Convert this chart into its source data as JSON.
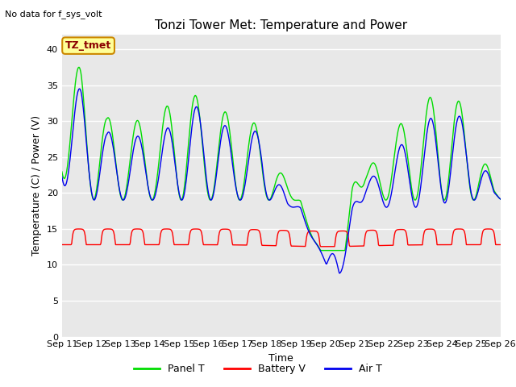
{
  "title": "Tonzi Tower Met: Temperature and Power",
  "subtitle": "No data for f_sys_volt",
  "ylabel": "Temperature (C) / Power (V)",
  "xlabel": "Time",
  "annotation": "TZ_tmet",
  "ylim": [
    0,
    42
  ],
  "yticks": [
    0,
    5,
    10,
    15,
    20,
    25,
    30,
    35,
    40
  ],
  "xtick_labels": [
    "Sep 11",
    "Sep 12",
    "Sep 13",
    "Sep 14",
    "Sep 15",
    "Sep 16",
    "Sep 17",
    "Sep 18",
    "Sep 19",
    "Sep 20",
    "Sep 21",
    "Sep 22",
    "Sep 23",
    "Sep 24",
    "Sep 25",
    "Sep 26"
  ],
  "panel_color": "#00dd00",
  "battery_color": "#ff0000",
  "air_color": "#0000ee",
  "background_color": "#e8e8e8",
  "legend_labels": [
    "Panel T",
    "Battery V",
    "Air T"
  ],
  "title_fontsize": 11,
  "axis_fontsize": 9,
  "tick_fontsize": 8,
  "legend_fontsize": 9,
  "n_days": 15,
  "pts_per_day": 48,
  "panel_peaks": [
    22,
    37.5,
    19,
    30.5,
    19,
    30.0,
    19,
    30.5,
    19,
    35.5,
    19,
    31.0,
    19,
    31.5,
    19,
    29.0,
    19,
    21.0,
    19,
    13.5,
    10.0,
    8.0,
    22,
    22.5,
    19,
    28.5,
    19,
    31.5,
    19,
    35.0,
    19,
    31.5,
    19,
    21.0
  ],
  "air_peaks": [
    21,
    34.5,
    19,
    28.5,
    19,
    28.0,
    19,
    27.5,
    19,
    32.0,
    19,
    32.0,
    19,
    27.5,
    19,
    29.0,
    19,
    18.5,
    18,
    13.5,
    10.0,
    8.0,
    19,
    21.0,
    18,
    25.5,
    18,
    28.5,
    18,
    32.0,
    19,
    30.0,
    19,
    20.5
  ],
  "batt_base": 12.8,
  "batt_peak": 15.0
}
